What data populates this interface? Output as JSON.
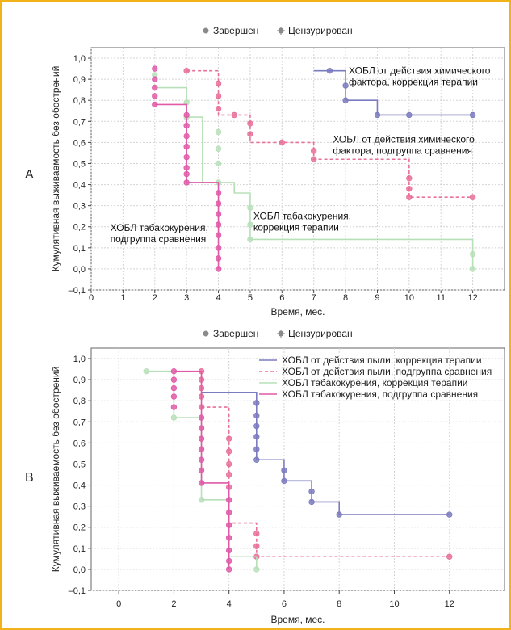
{
  "chart_data": [
    {
      "type": "line",
      "panel_letter": "A",
      "xlabel": "Время, мес.",
      "ylabel": "Кумулятивная выживаемость без обострений",
      "xlim": [
        0,
        13
      ],
      "ylim": [
        -0.1,
        1.05
      ],
      "xticks": [
        "0",
        "1",
        "2",
        "3",
        "4",
        "5",
        "6",
        "7",
        "8",
        "9",
        "10",
        "11",
        "12"
      ],
      "yticks": [
        "1,0",
        "0,9",
        "0,8",
        "0,7",
        "0,6",
        "0,5",
        "0,4",
        "0,3",
        "0,2",
        "0,1",
        "0,0",
        "–0,1"
      ],
      "grid": true,
      "legend": {
        "position": "top-center",
        "entries": [
          {
            "label": "Завершен",
            "color": "#8a8a8a",
            "marker": "circle"
          },
          {
            "label": "Цензурирован",
            "color": "#8a8a8a",
            "marker": "plus-circle"
          }
        ]
      },
      "annotations": [
        {
          "lines": [
            "ХОБЛ от действия химического",
            "фактора, коррекция терапии"
          ],
          "at": [
            8.1,
            0.925
          ]
        },
        {
          "lines": [
            "ХОБЛ от действия химического",
            "фактора, подгруппа сравнения"
          ],
          "at": [
            7.6,
            0.6
          ]
        },
        {
          "lines": [
            "ХОБЛ табакокурения,",
            "коррекция терапии"
          ],
          "at": [
            5.1,
            0.235
          ]
        },
        {
          "lines": [
            "ХОБЛ табакокурения,",
            "подгруппа сравнения"
          ],
          "at": [
            0.6,
            0.18
          ]
        }
      ],
      "series": [
        {
          "color": "#7b7bbf",
          "dash": "solid",
          "steps": [
            [
              7,
              0.94
            ],
            [
              8,
              0.8
            ],
            [
              9,
              0.73
            ],
            [
              12,
              0.73
            ]
          ],
          "markers": [
            [
              7.5,
              0.94
            ],
            [
              8,
              0.87
            ],
            [
              8,
              0.8
            ],
            [
              9,
              0.73
            ],
            [
              10,
              0.73
            ],
            [
              12,
              0.73
            ]
          ]
        },
        {
          "color": "#e8709a",
          "dash": "dashed",
          "steps": [
            [
              3,
              0.94
            ],
            [
              4,
              0.73
            ],
            [
              5,
              0.6
            ],
            [
              7,
              0.52
            ],
            [
              10,
              0.34
            ],
            [
              12,
              0.34
            ]
          ],
          "markers": [
            [
              3,
              0.94
            ],
            [
              4,
              0.88
            ],
            [
              4,
              0.82
            ],
            [
              4,
              0.76
            ],
            [
              4.5,
              0.73
            ],
            [
              5,
              0.69
            ],
            [
              5,
              0.64
            ],
            [
              6,
              0.6
            ],
            [
              7,
              0.56
            ],
            [
              7,
              0.52
            ],
            [
              10,
              0.43
            ],
            [
              10,
              0.38
            ],
            [
              10,
              0.34
            ],
            [
              12,
              0.34
            ]
          ]
        },
        {
          "color": "#b8e0b8",
          "dash": "solid",
          "steps": [
            [
              2,
              0.86
            ],
            [
              3,
              0.72
            ],
            [
              3.5,
              0.41
            ],
            [
              4.5,
              0.36
            ],
            [
              5,
              0.14
            ],
            [
              12,
              0.14
            ],
            [
              12,
              0.0
            ]
          ],
          "markers": [
            [
              2,
              0.92
            ],
            [
              3,
              0.79
            ],
            [
              3,
              0.72
            ],
            [
              4,
              0.65
            ],
            [
              4,
              0.57
            ],
            [
              4,
              0.5
            ],
            [
              4,
              0.41
            ],
            [
              5,
              0.29
            ],
            [
              5,
              0.21
            ],
            [
              5,
              0.14
            ],
            [
              12,
              0.07
            ],
            [
              12,
              0.0
            ]
          ]
        },
        {
          "color": "#e05aa8",
          "dash": "solid",
          "steps": [
            [
              2,
              0.78
            ],
            [
              3,
              0.41
            ],
            [
              4,
              0.0
            ]
          ],
          "markers": [
            [
              2,
              0.95
            ],
            [
              2,
              0.9
            ],
            [
              2,
              0.86
            ],
            [
              2,
              0.82
            ],
            [
              2,
              0.78
            ],
            [
              3,
              0.73
            ],
            [
              3,
              0.68
            ],
            [
              3,
              0.63
            ],
            [
              3,
              0.58
            ],
            [
              3,
              0.53
            ],
            [
              3,
              0.48
            ],
            [
              3,
              0.45
            ],
            [
              3,
              0.41
            ],
            [
              4,
              0.36
            ],
            [
              4,
              0.31
            ],
            [
              4,
              0.26
            ],
            [
              4,
              0.21
            ],
            [
              4,
              0.16
            ],
            [
              4,
              0.1
            ],
            [
              4,
              0.05
            ],
            [
              4,
              0.0
            ]
          ]
        }
      ]
    },
    {
      "type": "line",
      "panel_letter": "B",
      "xlabel": "Время, мес.",
      "ylabel": "Кумулятивная выживаемость без обострений",
      "xlim": [
        -1,
        14
      ],
      "ylim": [
        -0.1,
        1.05
      ],
      "xticks": [
        "0",
        "2",
        "4",
        "6",
        "8",
        "10",
        "12"
      ],
      "yticks": [
        "1,0",
        "0,9",
        "0,8",
        "0,7",
        "0,6",
        "0,5",
        "0,4",
        "0,3",
        "0,2",
        "0,1",
        "0,0",
        "–0,1"
      ],
      "grid": true,
      "legend": {
        "position": "top-center",
        "entries": [
          {
            "label": "Завершен",
            "color": "#8a8a8a",
            "marker": "circle"
          },
          {
            "label": "Цензурирован",
            "color": "#8a8a8a",
            "marker": "plus-circle"
          }
        ]
      },
      "series_legend": {
        "position": "top-right",
        "entries": [
          {
            "label": "ХОБЛ от действия пыли, коррекция терапии",
            "color": "#7b7bbf",
            "dash": "solid"
          },
          {
            "label": "ХОБЛ от действия пыли, подгруппа сравнения",
            "color": "#e8709a",
            "dash": "dashed"
          },
          {
            "label": "ХОБЛ табакокурения, коррекция терапии",
            "color": "#b8e0b8",
            "dash": "solid"
          },
          {
            "label": "ХОБЛ табакокурения, подгруппа сравнения",
            "color": "#e05aa8",
            "dash": "solid"
          }
        ]
      },
      "series": [
        {
          "color": "#7b7bbf",
          "dash": "solid",
          "steps": [
            [
              3,
              0.84
            ],
            [
              5,
              0.52
            ],
            [
              6,
              0.42
            ],
            [
              7,
              0.32
            ],
            [
              8,
              0.26
            ],
            [
              12,
              0.26
            ]
          ],
          "markers": [
            [
              5,
              0.79
            ],
            [
              5,
              0.73
            ],
            [
              5,
              0.68
            ],
            [
              5,
              0.63
            ],
            [
              5,
              0.57
            ],
            [
              5,
              0.52
            ],
            [
              6,
              0.47
            ],
            [
              6,
              0.42
            ],
            [
              7,
              0.37
            ],
            [
              7,
              0.32
            ],
            [
              8,
              0.26
            ],
            [
              12,
              0.26
            ]
          ]
        },
        {
          "color": "#e8709a",
          "dash": "dashed",
          "steps": [
            [
              3,
              0.77
            ],
            [
              4,
              0.22
            ],
            [
              5,
              0.06
            ],
            [
              12,
              0.06
            ]
          ],
          "markers": [
            [
              3,
              0.94
            ],
            [
              3,
              0.9
            ],
            [
              3,
              0.86
            ],
            [
              3,
              0.82
            ],
            [
              3,
              0.77
            ],
            [
              4,
              0.62
            ],
            [
              4,
              0.56
            ],
            [
              4,
              0.5
            ],
            [
              4,
              0.45
            ],
            [
              4,
              0.39
            ],
            [
              5,
              0.17
            ],
            [
              5,
              0.11
            ],
            [
              5,
              0.06
            ],
            [
              12,
              0.06
            ]
          ]
        },
        {
          "color": "#b8e0b8",
          "dash": "solid",
          "steps": [
            [
              1,
              0.94
            ],
            [
              2,
              0.72
            ],
            [
              3,
              0.33
            ],
            [
              4,
              0.06
            ],
            [
              5,
              0.0
            ]
          ],
          "markers": [
            [
              1,
              0.94
            ],
            [
              2,
              0.72
            ],
            [
              3,
              0.33
            ],
            [
              5,
              0.0
            ]
          ]
        },
        {
          "color": "#e05aa8",
          "dash": "solid",
          "steps": [
            [
              2,
              0.94
            ],
            [
              3,
              0.41
            ],
            [
              4,
              0.0
            ]
          ],
          "markers": [
            [
              2,
              0.94
            ],
            [
              2,
              0.9
            ],
            [
              2,
              0.86
            ],
            [
              2,
              0.82
            ],
            [
              2,
              0.77
            ],
            [
              3,
              0.72
            ],
            [
              3,
              0.67
            ],
            [
              3,
              0.62
            ],
            [
              3,
              0.57
            ],
            [
              3,
              0.52
            ],
            [
              3,
              0.47
            ],
            [
              3,
              0.41
            ],
            [
              4,
              0.33
            ],
            [
              4,
              0.27
            ],
            [
              4,
              0.21
            ],
            [
              4,
              0.15
            ],
            [
              4,
              0.09
            ],
            [
              4,
              0.04
            ],
            [
              4,
              0.0
            ]
          ]
        }
      ]
    }
  ]
}
